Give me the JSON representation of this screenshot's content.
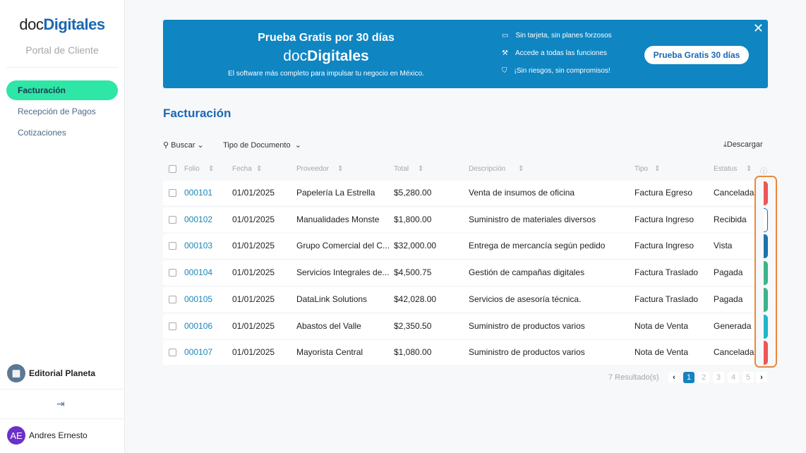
{
  "sidebar": {
    "logo_a": "doc",
    "logo_b": "Digitales",
    "subtitle": "Portal de Cliente",
    "items": [
      {
        "label": "Facturación",
        "active": true
      },
      {
        "label": "Recepción de Pagos"
      },
      {
        "label": "Cotizaciones"
      }
    ],
    "org": "Editorial Planeta",
    "user": "Andres Ernesto",
    "user_initials": "AE"
  },
  "banner": {
    "title": "Prueba Gratis por 30 días",
    "logo_a": "doc",
    "logo_b": "Digitales",
    "tagline": "El software más completo para impulsar tu negocio en México.",
    "features": [
      {
        "icon": "credit-card-icon",
        "text": "Sin tarjeta, sin planes forzosos"
      },
      {
        "icon": "tools-icon",
        "text": "Accede a todas las funciones"
      },
      {
        "icon": "shield-check-icon",
        "text": "¡Sin riesgos, sin compromisos!"
      }
    ],
    "cta": "Prueba Gratis 30 días",
    "close": "✕"
  },
  "page": {
    "title": "Facturación",
    "search": "Buscar",
    "doc_type": "Tipo de Documento",
    "download": "Descargar"
  },
  "table": {
    "headers": [
      "Folio",
      "Fecha",
      "Proveedor",
      "Total",
      "Descripción",
      "Tipo",
      "Estatus"
    ],
    "rows": [
      {
        "folio": "000101",
        "fecha": "01/01/2025",
        "proveedor": "Papelería La Estrella",
        "total": "$5,280.00",
        "descripcion": "Venta de insumos de oficina",
        "tipo": "Factura Egreso",
        "estatus": "Cancelada",
        "color": "#ec5656"
      },
      {
        "folio": "000102",
        "fecha": "01/01/2025",
        "proveedor": "Manualidades Monste",
        "total": "$1,800.00",
        "descripcion": "Suministro de materiales diversos",
        "tipo": "Factura Ingreso",
        "estatus": "Recibida",
        "color": "outline"
      },
      {
        "folio": "000103",
        "fecha": "01/01/2025",
        "proveedor": "Grupo Comercial del C...",
        "total": "$32,000.00",
        "descripcion": "Entrega de mercancía según pedido",
        "tipo": "Factura Ingreso",
        "estatus": "Vista",
        "color": "#1a72ad"
      },
      {
        "folio": "000104",
        "fecha": "01/01/2025",
        "proveedor": "Servicios Integrales de...",
        "total": "$4,500.75",
        "descripcion": "Gestión de campañas digitales",
        "tipo": "Factura Traslado",
        "estatus": "Pagada",
        "color": "#3db389"
      },
      {
        "folio": "000105",
        "fecha": "01/01/2025",
        "proveedor": "DataLink Solutions",
        "total": "$42,028.00",
        "descripcion": "Servicios de asesoría técnica.",
        "tipo": "Factura Traslado",
        "estatus": "Pagada",
        "color": "#3db389"
      },
      {
        "folio": "000106",
        "fecha": "01/01/2025",
        "proveedor": "Abastos del Valle",
        "total": "$2,350.50",
        "descripcion": "Suministro de productos varios",
        "tipo": "Nota de Venta",
        "estatus": "Generada",
        "color": "#1fb5cc"
      },
      {
        "folio": "000107",
        "fecha": "01/01/2025",
        "proveedor": "Mayorista Central",
        "total": "$1,080.00",
        "descripcion": "Suministro de productos varios",
        "tipo": "Nota de Venta",
        "estatus": "Cancelada",
        "color": "#ec5656"
      }
    ]
  },
  "pagination": {
    "results": "7 Resultado(s)",
    "pages": [
      "1",
      "2",
      "3",
      "4",
      "5"
    ],
    "current": "1"
  }
}
